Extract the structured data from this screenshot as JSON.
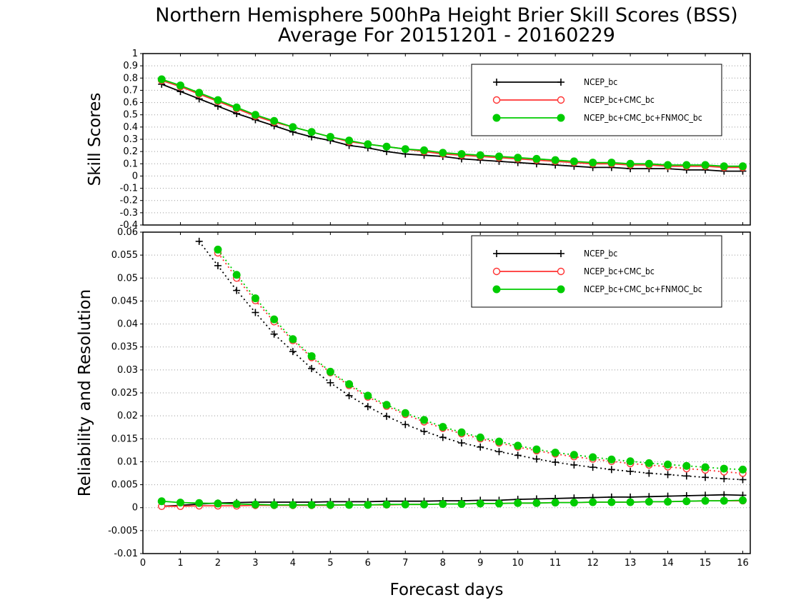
{
  "title": {
    "line1": "Northern Hemisphere 500hPa Height Brier Skill Scores (BSS)",
    "line2": "Average For 20151201 - 20160229"
  },
  "xlabel": "Forecast days",
  "colors": {
    "NCEP_bc": "#000000",
    "NCEP_bc+CMC_bc": "#ff3333",
    "NCEP_bc+CMC_bc+FNMOC_bc": "#00cc00",
    "grid": "#999999"
  },
  "chart_data": [
    {
      "type": "line",
      "panel": "top",
      "ylabel": "Skill Scores",
      "xlim": [
        0,
        16.2
      ],
      "ylim": [
        -0.4,
        1
      ],
      "x_ticks": [
        "0",
        "1",
        "2",
        "3",
        "4",
        "5",
        "6",
        "7",
        "8",
        "9",
        "10",
        "11",
        "12",
        "13",
        "14",
        "15",
        "16"
      ],
      "y_ticks": [
        "-0.4",
        "-0.3",
        "-0.2",
        "-0.1",
        "0",
        "0.1",
        "0.2",
        "0.3",
        "0.4",
        "0.5",
        "0.6",
        "0.7",
        "0.8",
        "0.9",
        "1"
      ],
      "grid": true,
      "legend_position": "top-right",
      "x": [
        0.5,
        1,
        1.5,
        2,
        2.5,
        3,
        3.5,
        4,
        4.5,
        5,
        5.5,
        6,
        6.5,
        7,
        7.5,
        8,
        8.5,
        9,
        9.5,
        10,
        10.5,
        11,
        11.5,
        12,
        12.5,
        13,
        13.5,
        14,
        14.5,
        15,
        15.5,
        16
      ],
      "series": [
        {
          "name": "NCEP_bc",
          "marker": "plus",
          "style": "solid",
          "values": [
            0.75,
            0.69,
            0.63,
            0.57,
            0.51,
            0.46,
            0.41,
            0.36,
            0.32,
            0.29,
            0.25,
            0.23,
            0.2,
            0.18,
            0.17,
            0.16,
            0.14,
            0.13,
            0.12,
            0.11,
            0.1,
            0.09,
            0.08,
            0.07,
            0.07,
            0.06,
            0.06,
            0.06,
            0.05,
            0.05,
            0.04,
            0.04
          ]
        },
        {
          "name": "NCEP_bc+CMC_bc",
          "marker": "open-circle",
          "style": "solid",
          "values": [
            0.78,
            0.73,
            0.67,
            0.61,
            0.55,
            0.49,
            0.44,
            0.4,
            0.36,
            0.32,
            0.28,
            0.26,
            0.24,
            0.22,
            0.2,
            0.18,
            0.17,
            0.16,
            0.15,
            0.14,
            0.13,
            0.12,
            0.11,
            0.1,
            0.1,
            0.09,
            0.09,
            0.08,
            0.08,
            0.08,
            0.07,
            0.07
          ]
        },
        {
          "name": "NCEP_bc+CMC_bc+FNMOC_bc",
          "marker": "filled-circle",
          "style": "solid",
          "values": [
            0.79,
            0.74,
            0.68,
            0.62,
            0.56,
            0.5,
            0.45,
            0.4,
            0.36,
            0.32,
            0.29,
            0.26,
            0.24,
            0.22,
            0.21,
            0.19,
            0.18,
            0.17,
            0.16,
            0.15,
            0.14,
            0.13,
            0.12,
            0.11,
            0.11,
            0.1,
            0.1,
            0.09,
            0.09,
            0.09,
            0.08,
            0.08
          ]
        }
      ]
    },
    {
      "type": "line",
      "panel": "bottom",
      "ylabel": "Reliability and Resolution",
      "xlim": [
        0,
        16.2
      ],
      "ylim": [
        -0.01,
        0.06
      ],
      "x_ticks": [
        "0",
        "1",
        "2",
        "3",
        "4",
        "5",
        "6",
        "7",
        "8",
        "9",
        "10",
        "11",
        "12",
        "13",
        "14",
        "15",
        "16"
      ],
      "y_ticks": [
        "-0.01",
        "-0.005",
        "0",
        "0.005",
        "0.01",
        "0.015",
        "0.02",
        "0.025",
        "0.03",
        "0.035",
        "0.04",
        "0.045",
        "0.05",
        "0.055",
        "0.06"
      ],
      "grid": true,
      "legend_position": "top-right",
      "x": [
        0.5,
        1,
        1.5,
        2,
        2.5,
        3,
        3.5,
        4,
        4.5,
        5,
        5.5,
        6,
        6.5,
        7,
        7.5,
        8,
        8.5,
        9,
        9.5,
        10,
        10.5,
        11,
        11.5,
        12,
        12.5,
        13,
        13.5,
        14,
        14.5,
        15,
        15.5,
        16
      ],
      "series": [
        {
          "name": "NCEP_bc",
          "component": "reliability",
          "marker": "plus",
          "style": "solid",
          "values": [
            0.0003,
            0.0005,
            0.0008,
            0.001,
            0.0011,
            0.0012,
            0.0012,
            0.0012,
            0.0012,
            0.0013,
            0.0013,
            0.0013,
            0.0014,
            0.0014,
            0.0014,
            0.0015,
            0.0015,
            0.0016,
            0.0016,
            0.0018,
            0.0019,
            0.002,
            0.0021,
            0.0022,
            0.0023,
            0.0023,
            0.0024,
            0.0025,
            0.0026,
            0.0027,
            0.0028,
            0.0027
          ]
        },
        {
          "name": "NCEP_bc+CMC_bc",
          "component": "reliability",
          "marker": "open-circle",
          "style": "solid",
          "values": [
            0.0003,
            0.0003,
            0.0004,
            0.0004,
            0.0004,
            0.0005,
            0.0005,
            0.0005,
            0.0005,
            0.0005,
            0.0006,
            0.0006,
            0.0006,
            0.0007,
            0.0007,
            0.0008,
            0.0008,
            0.0009,
            0.0009,
            0.001,
            0.001,
            0.0011,
            0.0011,
            0.0012,
            0.0012,
            0.0012,
            0.0013,
            0.0013,
            0.0014,
            0.0015,
            0.0015,
            0.0015
          ]
        },
        {
          "name": "NCEP_bc+CMC_bc+FNMOC_bc",
          "component": "reliability",
          "marker": "filled-circle",
          "style": "solid",
          "values": [
            0.0014,
            0.0011,
            0.001,
            0.0009,
            0.0008,
            0.0007,
            0.0006,
            0.0006,
            0.0006,
            0.0006,
            0.0006,
            0.0006,
            0.0007,
            0.0007,
            0.0007,
            0.0008,
            0.0008,
            0.0009,
            0.0009,
            0.001,
            0.001,
            0.0011,
            0.0011,
            0.0012,
            0.0012,
            0.0012,
            0.0013,
            0.0013,
            0.0014,
            0.0015,
            0.0015,
            0.0016
          ]
        },
        {
          "name": "NCEP_bc",
          "component": "resolution",
          "marker": "plus",
          "style": "dotted",
          "values": [
            null,
            null,
            0.058,
            0.0527,
            0.0473,
            0.0425,
            0.0378,
            0.034,
            0.0303,
            0.0272,
            0.0244,
            0.022,
            0.0199,
            0.0181,
            0.0166,
            0.0153,
            0.0141,
            0.0132,
            0.0122,
            0.0114,
            0.0106,
            0.0099,
            0.0093,
            0.0088,
            0.0083,
            0.0079,
            0.0075,
            0.0072,
            0.0069,
            0.0066,
            0.0063,
            0.0061
          ]
        },
        {
          "name": "NCEP_bc+CMC_bc",
          "component": "resolution",
          "marker": "open-circle",
          "style": "dotted",
          "values": [
            null,
            null,
            null,
            0.0555,
            0.05,
            0.0451,
            0.0405,
            0.0364,
            0.0327,
            0.0294,
            0.0266,
            0.0241,
            0.0221,
            0.0203,
            0.0187,
            0.0173,
            0.0161,
            0.015,
            0.0141,
            0.0132,
            0.0124,
            0.0117,
            0.0111,
            0.0106,
            0.0101,
            0.0096,
            0.0093,
            0.0089,
            0.0085,
            0.0082,
            0.0078,
            0.0075
          ]
        },
        {
          "name": "NCEP_bc+CMC_bc+FNMOC_bc",
          "component": "resolution",
          "marker": "filled-circle",
          "style": "dotted",
          "values": [
            null,
            null,
            null,
            0.0562,
            0.0507,
            0.0456,
            0.041,
            0.0367,
            0.033,
            0.0296,
            0.0269,
            0.0244,
            0.0224,
            0.0206,
            0.0191,
            0.0176,
            0.0164,
            0.0153,
            0.0144,
            0.0135,
            0.0127,
            0.012,
            0.0115,
            0.011,
            0.0105,
            0.0101,
            0.0097,
            0.0094,
            0.0091,
            0.0088,
            0.0085,
            0.0083
          ]
        }
      ]
    }
  ]
}
